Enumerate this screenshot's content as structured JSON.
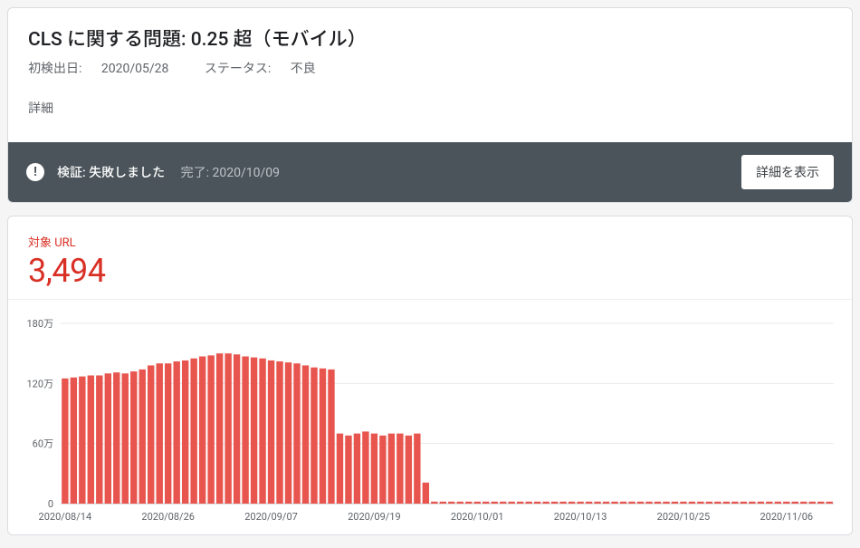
{
  "header": {
    "title": "CLS に関する問題: 0.25 超（モバイル）",
    "first_detected_label": "初検出日:",
    "first_detected_value": "2020/05/28",
    "status_label": "ステータス:",
    "status_value": "不良",
    "details_link": "詳細"
  },
  "statusbar": {
    "verify_label": "検証:",
    "verify_value": "失敗しました",
    "completed_label": "完了:",
    "completed_value": "2020/10/09",
    "button": "詳細を表示"
  },
  "metric": {
    "label": "対象 URL",
    "value": "3,494"
  },
  "chart": {
    "type": "bar",
    "bar_color": "#e8554e",
    "ylim": [
      0,
      180
    ],
    "yticks": [
      {
        "v": 0,
        "label": "0"
      },
      {
        "v": 60,
        "label": "60万"
      },
      {
        "v": 120,
        "label": "120万"
      },
      {
        "v": 180,
        "label": "180万"
      }
    ],
    "xticks": [
      {
        "idx": 0,
        "label": "2020/08/14"
      },
      {
        "idx": 12,
        "label": "2020/08/26"
      },
      {
        "idx": 24,
        "label": "2020/09/07"
      },
      {
        "idx": 36,
        "label": "2020/09/19"
      },
      {
        "idx": 48,
        "label": "2020/10/01"
      },
      {
        "idx": 60,
        "label": "2020/10/13"
      },
      {
        "idx": 72,
        "label": "2020/10/25"
      },
      {
        "idx": 84,
        "label": "2020/11/06"
      }
    ],
    "values": [
      125,
      126,
      127,
      128,
      128,
      130,
      131,
      130,
      132,
      134,
      138,
      140,
      140,
      142,
      143,
      145,
      147,
      148,
      150,
      150,
      149,
      147,
      146,
      145,
      143,
      142,
      141,
      140,
      138,
      136,
      135,
      134,
      70,
      68,
      70,
      72,
      70,
      68,
      70,
      70,
      68,
      70,
      21,
      2,
      2,
      2,
      2,
      2,
      2,
      2,
      2,
      2,
      2,
      2,
      2,
      2,
      2,
      2,
      2,
      2,
      2,
      2,
      2,
      2,
      2,
      2,
      2,
      2,
      2,
      2,
      2,
      2,
      2,
      2,
      2,
      2,
      2,
      2,
      2,
      2,
      2,
      2,
      2,
      2,
      2,
      2,
      2,
      2,
      2,
      2
    ]
  }
}
